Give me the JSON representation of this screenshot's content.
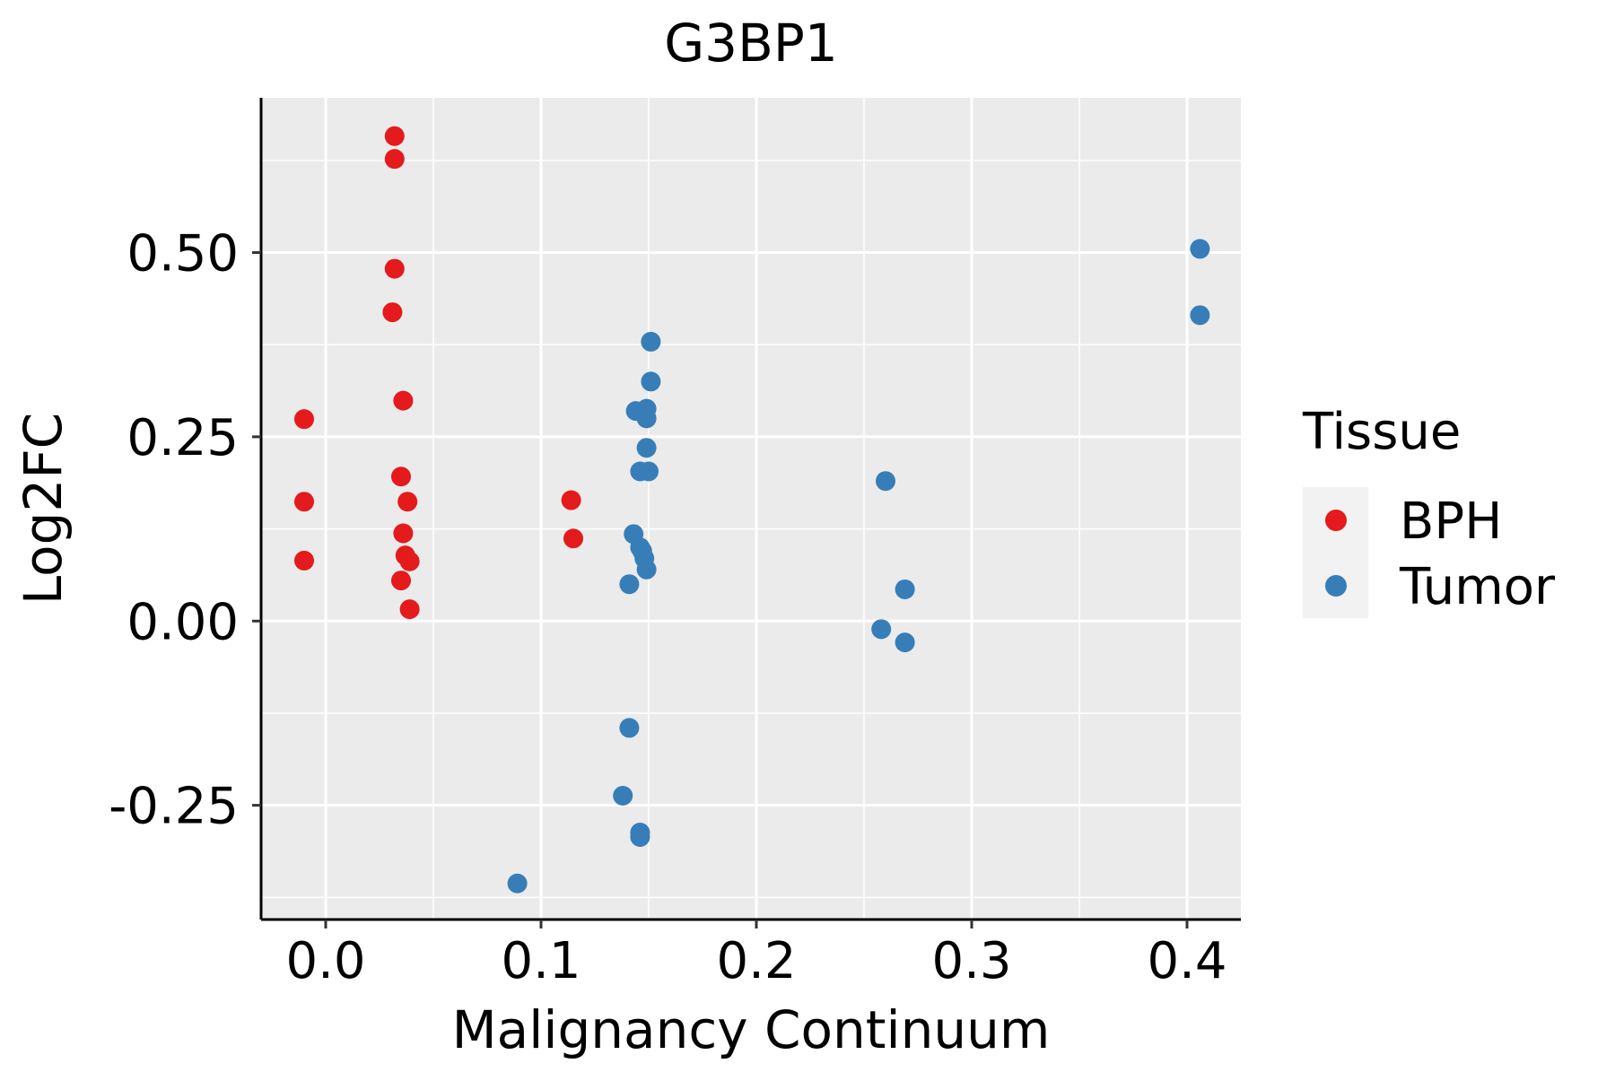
{
  "chart_data": {
    "type": "scatter",
    "title": "G3BP1",
    "xlabel": "Malignancy Continuum",
    "ylabel": "Log2FC",
    "xlim": [
      -0.03,
      0.425
    ],
    "ylim": [
      -0.405,
      0.71
    ],
    "x_ticks": [
      0.0,
      0.1,
      0.2,
      0.3,
      0.4
    ],
    "x_tick_labels": [
      "0.0",
      "0.1",
      "0.2",
      "0.3",
      "0.4"
    ],
    "y_ticks": [
      -0.25,
      0.0,
      0.25,
      0.5
    ],
    "y_tick_labels": [
      "-0.25",
      "0.00",
      "0.25",
      "0.50"
    ],
    "grid": true,
    "legend": {
      "title": "Tissue",
      "position": "right",
      "entries": [
        {
          "name": "BPH",
          "color": "#E41A1C"
        },
        {
          "name": "Tumor",
          "color": "#377EB8"
        }
      ]
    },
    "series": [
      {
        "name": "BPH",
        "color": "#E41A1C",
        "points": [
          {
            "x": 0.032,
            "y": 0.658
          },
          {
            "x": 0.032,
            "y": 0.627
          },
          {
            "x": 0.032,
            "y": 0.478
          },
          {
            "x": 0.031,
            "y": 0.419
          },
          {
            "x": 0.036,
            "y": 0.299
          },
          {
            "x": -0.01,
            "y": 0.274
          },
          {
            "x": 0.035,
            "y": 0.196
          },
          {
            "x": -0.01,
            "y": 0.162
          },
          {
            "x": 0.038,
            "y": 0.162
          },
          {
            "x": 0.036,
            "y": 0.119
          },
          {
            "x": 0.037,
            "y": 0.089
          },
          {
            "x": -0.01,
            "y": 0.082
          },
          {
            "x": 0.039,
            "y": 0.081
          },
          {
            "x": 0.035,
            "y": 0.055
          },
          {
            "x": 0.039,
            "y": 0.016
          },
          {
            "x": 0.114,
            "y": 0.164
          },
          {
            "x": 0.115,
            "y": 0.112
          }
        ]
      },
      {
        "name": "Tumor",
        "color": "#377EB8",
        "points": [
          {
            "x": 0.151,
            "y": 0.379
          },
          {
            "x": 0.151,
            "y": 0.325
          },
          {
            "x": 0.144,
            "y": 0.285
          },
          {
            "x": 0.149,
            "y": 0.288
          },
          {
            "x": 0.149,
            "y": 0.275
          },
          {
            "x": 0.149,
            "y": 0.235
          },
          {
            "x": 0.146,
            "y": 0.203
          },
          {
            "x": 0.15,
            "y": 0.203
          },
          {
            "x": 0.143,
            "y": 0.118
          },
          {
            "x": 0.146,
            "y": 0.1
          },
          {
            "x": 0.147,
            "y": 0.095
          },
          {
            "x": 0.148,
            "y": 0.085
          },
          {
            "x": 0.149,
            "y": 0.07
          },
          {
            "x": 0.141,
            "y": 0.05
          },
          {
            "x": 0.141,
            "y": -0.145
          },
          {
            "x": 0.138,
            "y": -0.237
          },
          {
            "x": 0.146,
            "y": -0.287
          },
          {
            "x": 0.146,
            "y": -0.293
          },
          {
            "x": 0.089,
            "y": -0.356
          },
          {
            "x": 0.26,
            "y": 0.19
          },
          {
            "x": 0.269,
            "y": 0.043
          },
          {
            "x": 0.258,
            "y": -0.011
          },
          {
            "x": 0.269,
            "y": -0.029
          },
          {
            "x": 0.406,
            "y": 0.505
          },
          {
            "x": 0.406,
            "y": 0.415
          }
        ]
      }
    ]
  }
}
